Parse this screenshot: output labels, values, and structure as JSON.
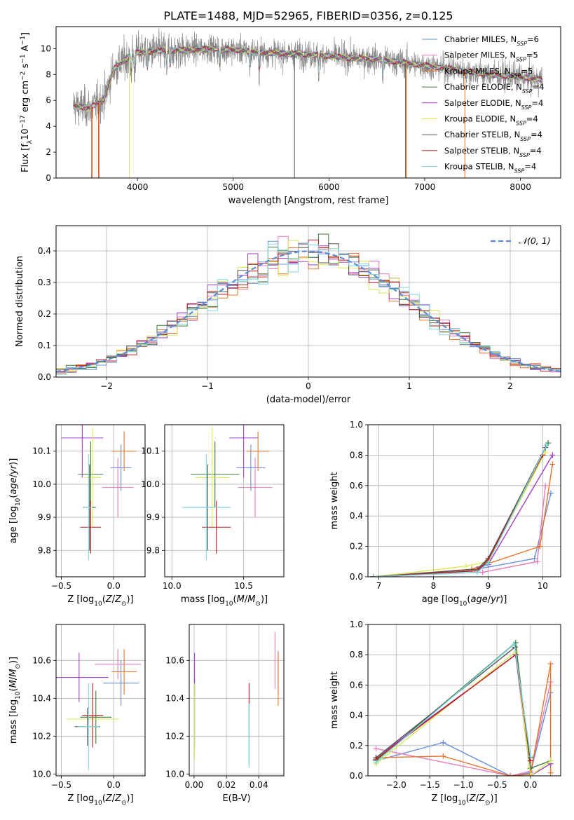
{
  "figure_title": "PLATE=1488, MJD=52965, FIBERID=0356, z=0.125",
  "colors": {
    "Chabrier MILES": "#6a8fd8",
    "Salpeter MILES": "#e87ab8",
    "Kroupa MILES": "#e8732a",
    "Chabrier ELODIE": "#3d7a3d",
    "Salpeter ELODIE": "#a43ec4",
    "Kroupa ELODIE": "#d9ea58",
    "Chabrier STELIB": "#555555",
    "Salpeter STELIB": "#b51f1f",
    "Kroupa STELIB": "#7fd8e0",
    "gaussian": "#5b8bd9",
    "grid": "#b0b0b0"
  },
  "chart_data": [
    {
      "id": "spectrum",
      "type": "line",
      "title": "PLATE=1488, MJD=52965, FIBERID=0356, z=0.125",
      "xlabel": "wavelength [Angstrom, rest frame]",
      "ylabel": "Flux [f_λ10^-17 erg cm^-2 s^-1 A^-1]",
      "xlim": [
        3150,
        8420
      ],
      "ylim": [
        0,
        11.7
      ],
      "xticks": [
        4000,
        5000,
        6000,
        7000,
        8000
      ],
      "yticks": [
        0,
        2,
        4,
        6,
        8,
        10
      ],
      "grid": false,
      "legend_position": "top-right",
      "legend": [
        {
          "model": "Chabrier MILES",
          "text": "Chabrier MILES, N",
          "sub": "SSP",
          "tail": "=6"
        },
        {
          "model": "Salpeter MILES",
          "text": "Salpeter MILES, N",
          "sub": "SSP",
          "tail": "=5"
        },
        {
          "model": "Kroupa MILES",
          "text": "Kroupa MILES, N",
          "sub": "SSP",
          "tail": "=5"
        },
        {
          "model": "Chabrier ELODIE",
          "text": "Chabrier ELODIE, N",
          "sub": "SSP",
          "tail": "=4"
        },
        {
          "model": "Salpeter ELODIE",
          "text": "Salpeter ELODIE, N",
          "sub": "SSP",
          "tail": "=4"
        },
        {
          "model": "Kroupa ELODIE",
          "text": "Kroupa ELODIE, N",
          "sub": "SSP",
          "tail": "=4"
        },
        {
          "model": "Chabrier STELIB",
          "text": "Chabrier STELIB, N",
          "sub": "SSP",
          "tail": "=4"
        },
        {
          "model": "Salpeter STELIB",
          "text": "Salpeter STELIB, N",
          "sub": "SSP",
          "tail": "=4"
        },
        {
          "model": "Kroupa STELIB",
          "text": "Kroupa STELIB, N",
          "sub": "SSP",
          "tail": "=4"
        }
      ],
      "data_series": {
        "name": "data",
        "wavelength_range": [
          3330,
          8230
        ],
        "noise": 0.9
      },
      "continuum": {
        "x": [
          3330,
          3500,
          3650,
          3750,
          3900,
          4000,
          4200,
          4500,
          4800,
          5000,
          5300,
          5600,
          5900,
          6200,
          6500,
          6800,
          7100,
          7400,
          7700,
          8000,
          8230
        ],
        "y": [
          5.6,
          5.4,
          6.1,
          8.4,
          9.3,
          9.7,
          9.8,
          9.9,
          10.0,
          9.9,
          9.7,
          9.6,
          9.5,
          9.3,
          9.2,
          8.9,
          8.6,
          8.3,
          8.0,
          7.8,
          7.6
        ]
      },
      "absorption_lines": [
        3934,
        3968,
        4102,
        4304,
        4341,
        4861,
        5175,
        5270,
        5892,
        6563,
        8498,
        8542,
        8662
      ],
      "vertical_drops": [
        {
          "model": "Salpeter STELIB",
          "x": [
            3525,
            3595
          ]
        },
        {
          "model": "Kroupa MILES",
          "x": [
            3520,
            3600,
            6810,
            7420
          ]
        },
        {
          "model": "Kroupa ELODIE",
          "x": [
            3915,
            6800
          ]
        },
        {
          "model": "Chabrier STELIB",
          "x": [
            5640,
            6800
          ]
        }
      ]
    },
    {
      "id": "residuals",
      "type": "histogram",
      "xlabel": "(data-model)/error",
      "ylabel": "Normed distribution",
      "xlim": [
        -2.5,
        2.5
      ],
      "ylim": [
        0,
        0.48
      ],
      "xticks": [
        -2,
        -1,
        0,
        1,
        2
      ],
      "xtick_labels": [
        "−2",
        "−1",
        "0",
        "1",
        "2"
      ],
      "yticks": [
        0.0,
        0.1,
        0.2,
        0.3,
        0.4
      ],
      "grid": true,
      "legend_position": "top-right",
      "legend": [
        {
          "text": "𝒩(0, 1)",
          "style": "dashed"
        }
      ],
      "bin_width": 0.1,
      "bins_from": -2.5,
      "bin_count": 50,
      "gaussian": {
        "name": "𝒩(0, 1)",
        "mu": 0,
        "sigma": 1
      }
    },
    {
      "id": "age_vs_Z",
      "type": "errorbar",
      "xlabel": "Z [log10(Z/Z⊙)]",
      "ylabel": "age [log10(age/yr)]",
      "xlim": [
        -0.55,
        0.3
      ],
      "ylim": [
        9.72,
        10.18
      ],
      "xticks": [
        -0.5,
        0.0
      ],
      "xtick_labels": [
        "−0.5",
        "0.0"
      ],
      "yticks": [
        9.8,
        9.9,
        10.0,
        10.1
      ],
      "ytick_labels": [
        "9.8",
        "9.9",
        "10.0",
        "10.1"
      ],
      "grid": true,
      "points": [
        {
          "model": "Chabrier MILES",
          "x": 0.07,
          "y": 10.05,
          "xerr": 0.1,
          "yerr": 0.07
        },
        {
          "model": "Salpeter MILES",
          "x": 0.04,
          "y": 9.99,
          "xerr": 0.15,
          "yerr": 0.09
        },
        {
          "model": "Kroupa MILES",
          "x": 0.1,
          "y": 10.1,
          "xerr": 0.12,
          "yerr": 0.06
        },
        {
          "model": "Chabrier ELODIE",
          "x": -0.22,
          "y": 10.03,
          "xerr": 0.12,
          "yerr": 0.1
        },
        {
          "model": "Salpeter ELODIE",
          "x": -0.3,
          "y": 10.14,
          "xerr": 0.2,
          "yerr": 0.12
        },
        {
          "model": "Kroupa ELODIE",
          "x": -0.2,
          "y": 10.02,
          "xerr": 0.08,
          "yerr": 0.15
        },
        {
          "model": "Chabrier STELIB",
          "x": -0.23,
          "y": 9.93,
          "xerr": 0.06,
          "yerr": 0.13
        },
        {
          "model": "Salpeter STELIB",
          "x": -0.22,
          "y": 9.87,
          "xerr": 0.1,
          "yerr": 0.08
        },
        {
          "model": "Kroupa STELIB",
          "x": -0.24,
          "y": 9.93,
          "xerr": 0.04,
          "yerr": 0.16
        }
      ]
    },
    {
      "id": "age_vs_mass",
      "type": "errorbar",
      "xlabel": "mass [log10(M/M⊙)]",
      "ylabel": "",
      "xlim": [
        9.95,
        10.78
      ],
      "ylim": [
        9.72,
        10.18
      ],
      "xticks": [
        10.0,
        10.5
      ],
      "xtick_labels": [
        "10.0",
        "10.5"
      ],
      "yticks": [
        9.8,
        9.9,
        10.0,
        10.1
      ],
      "ytick_labels": [
        "9.8",
        "9.9",
        "10.0",
        "10.1"
      ],
      "grid": true,
      "points": [
        {
          "model": "Chabrier MILES",
          "x": 10.55,
          "y": 10.05,
          "xerr": 0.1,
          "yerr": 0.07
        },
        {
          "model": "Salpeter MILES",
          "x": 10.58,
          "y": 9.99,
          "xerr": 0.12,
          "yerr": 0.09
        },
        {
          "model": "Kroupa MILES",
          "x": 10.6,
          "y": 10.1,
          "xerr": 0.08,
          "yerr": 0.06
        },
        {
          "model": "Chabrier ELODIE",
          "x": 10.3,
          "y": 10.03,
          "xerr": 0.17,
          "yerr": 0.1
        },
        {
          "model": "Salpeter ELODIE",
          "x": 10.5,
          "y": 10.14,
          "xerr": 0.1,
          "yerr": 0.12
        },
        {
          "model": "Kroupa ELODIE",
          "x": 10.28,
          "y": 10.02,
          "xerr": 0.12,
          "yerr": 0.15
        },
        {
          "model": "Chabrier STELIB",
          "x": 10.25,
          "y": 9.93,
          "xerr": 0.15,
          "yerr": 0.13
        },
        {
          "model": "Salpeter STELIB",
          "x": 10.31,
          "y": 9.87,
          "xerr": 0.1,
          "yerr": 0.08
        },
        {
          "model": "Kroupa STELIB",
          "x": 10.24,
          "y": 9.93,
          "xerr": 0.17,
          "yerr": 0.16
        }
      ]
    },
    {
      "id": "weight_vs_age",
      "type": "line",
      "xlabel": "age [log10(age/yr)]",
      "ylabel": "mass weight",
      "xlim": [
        6.8,
        10.33
      ],
      "ylim": [
        0,
        1
      ],
      "xticks": [
        7,
        8,
        9,
        10
      ],
      "yticks": [
        0.0,
        0.2,
        0.4,
        0.6,
        0.8,
        1.0
      ],
      "grid": true,
      "series": [
        {
          "model": "Chabrier MILES",
          "x": [
            6.9,
            8.8,
            9.85,
            10.15
          ],
          "y": [
            0.0,
            0.05,
            0.12,
            0.55
          ]
        },
        {
          "model": "Salpeter MILES",
          "x": [
            6.9,
            8.9,
            9.9,
            10.05
          ],
          "y": [
            0.0,
            0.03,
            0.1,
            0.6
          ]
        },
        {
          "model": "Kroupa MILES",
          "x": [
            6.9,
            8.7,
            9.95,
            10.18
          ],
          "y": [
            0.0,
            0.05,
            0.2,
            0.74
          ]
        },
        {
          "model": "Chabrier ELODIE",
          "x": [
            6.9,
            8.8,
            9.0,
            10.1
          ],
          "y": [
            0.0,
            0.04,
            0.1,
            0.88
          ]
        },
        {
          "model": "Salpeter ELODIE",
          "x": [
            6.9,
            8.8,
            9.0,
            10.18
          ],
          "y": [
            0.0,
            0.05,
            0.08,
            0.8
          ]
        },
        {
          "model": "Kroupa ELODIE",
          "x": [
            6.9,
            8.6,
            9.0,
            10.05
          ],
          "y": [
            0.0,
            0.07,
            0.1,
            0.82
          ]
        },
        {
          "model": "Chabrier STELIB",
          "x": [
            6.9,
            8.8,
            9.0,
            10.05
          ],
          "y": [
            0.0,
            0.05,
            0.12,
            0.85
          ]
        },
        {
          "model": "Salpeter STELIB",
          "x": [
            6.9,
            8.8,
            9.0,
            10.0
          ],
          "y": [
            0.0,
            0.04,
            0.11,
            0.8
          ]
        },
        {
          "model": "Kroupa STELIB",
          "x": [
            6.9,
            8.8,
            9.0,
            10.08
          ],
          "y": [
            0.0,
            0.03,
            0.09,
            0.87
          ]
        }
      ]
    },
    {
      "id": "mass_vs_Z",
      "type": "errorbar",
      "xlabel": "Z [log10(Z/Z⊙)]",
      "ylabel": "mass [log10(M/M⊙)]",
      "xlim": [
        -0.55,
        0.3
      ],
      "ylim": [
        9.99,
        10.79
      ],
      "xticks": [
        -0.5,
        0.0
      ],
      "xtick_labels": [
        "−0.5",
        "0.0"
      ],
      "yticks": [
        10.0,
        10.2,
        10.4,
        10.6
      ],
      "ytick_labels": [
        "10.0",
        "10.2",
        "10.4",
        "10.6"
      ],
      "grid": true,
      "points": [
        {
          "model": "Chabrier MILES",
          "x": 0.07,
          "y": 10.48,
          "xerr": 0.17,
          "yerr": 0.12
        },
        {
          "model": "Salpeter MILES",
          "x": 0.04,
          "y": 10.58,
          "xerr": 0.22,
          "yerr": 0.08
        },
        {
          "model": "Kroupa MILES",
          "x": 0.1,
          "y": 10.54,
          "xerr": 0.12,
          "yerr": 0.12
        },
        {
          "model": "Chabrier ELODIE",
          "x": -0.17,
          "y": 10.3,
          "xerr": 0.15,
          "yerr": 0.14
        },
        {
          "model": "Salpeter ELODIE",
          "x": -0.33,
          "y": 10.51,
          "xerr": 0.28,
          "yerr": 0.13
        },
        {
          "model": "Kroupa ELODIE",
          "x": -0.2,
          "y": 10.29,
          "xerr": 0.25,
          "yerr": 0.12
        },
        {
          "model": "Chabrier STELIB",
          "x": -0.25,
          "y": 10.25,
          "xerr": 0.12,
          "yerr": 0.1
        },
        {
          "model": "Salpeter STELIB",
          "x": -0.2,
          "y": 10.31,
          "xerr": 0.1,
          "yerr": 0.17
        },
        {
          "model": "Kroupa STELIB",
          "x": -0.24,
          "y": 10.25,
          "xerr": 0.1,
          "yerr": 0.23
        }
      ]
    },
    {
      "id": "mass_vs_EBV",
      "type": "errorbar",
      "xlabel": "E(B-V)",
      "ylabel": "",
      "xlim": [
        -0.003,
        0.0555
      ],
      "ylim": [
        9.99,
        10.79
      ],
      "xticks": [
        0.0,
        0.02,
        0.04
      ],
      "xtick_labels": [
        "0.00",
        "0.02",
        "0.04"
      ],
      "yticks": [
        10.0,
        10.2,
        10.4,
        10.6
      ],
      "ytick_labels": [
        "10.0",
        "10.2",
        "10.4",
        "10.6"
      ],
      "grid": true,
      "points": [
        {
          "model": "Chabrier MILES",
          "x": 0.052,
          "y": 10.55,
          "xerr": 0,
          "yerr": 0.1
        },
        {
          "model": "Salpeter MILES",
          "x": 0.05,
          "y": 10.6,
          "xerr": 0,
          "yerr": 0.15
        },
        {
          "model": "Kroupa MILES",
          "x": 0.052,
          "y": 10.5,
          "xerr": 0,
          "yerr": 0.14
        },
        {
          "model": "Chabrier ELODIE",
          "x": 0.0003,
          "y": 10.32,
          "xerr": 0,
          "yerr": 0.18
        },
        {
          "model": "Salpeter ELODIE",
          "x": 0.0003,
          "y": 10.53,
          "xerr": 0,
          "yerr": 0.11
        },
        {
          "model": "Kroupa ELODIE",
          "x": 0.0003,
          "y": 10.28,
          "xerr": 0,
          "yerr": 0.2
        },
        {
          "model": "Chabrier STELIB",
          "x": 0.034,
          "y": 10.2,
          "xerr": 0,
          "yerr": 0.15
        },
        {
          "model": "Salpeter STELIB",
          "x": 0.034,
          "y": 10.36,
          "xerr": 0,
          "yerr": 0.12
        },
        {
          "model": "Kroupa STELIB",
          "x": 0.034,
          "y": 10.2,
          "xerr": 0,
          "yerr": 0.17
        }
      ]
    },
    {
      "id": "weight_vs_Z",
      "type": "line",
      "xlabel": "Z [log10(Z/Z⊙)]",
      "ylabel": "mass weight",
      "xlim": [
        -2.42,
        0.45
      ],
      "ylim": [
        0,
        1
      ],
      "xticks": [
        -2.0,
        -1.5,
        -1.0,
        -0.5,
        0.0
      ],
      "xtick_labels": [
        "−2.0",
        "−1.5",
        "−1.0",
        "−0.5",
        "0.0"
      ],
      "yticks": [
        0.0,
        0.2,
        0.4,
        0.6,
        0.8,
        1.0
      ],
      "grid": true,
      "series": [
        {
          "model": "Chabrier MILES",
          "x": [
            -2.3,
            -1.3,
            -0.3,
            0.0,
            0.3
          ],
          "y": [
            0.1,
            0.22,
            0.0,
            0.02,
            0.55
          ]
        },
        {
          "model": "Salpeter MILES",
          "x": [
            -2.3,
            -0.3,
            0.0,
            0.3
          ],
          "y": [
            0.18,
            0.0,
            0.03,
            0.62
          ]
        },
        {
          "model": "Kroupa MILES",
          "x": [
            -2.3,
            -1.3,
            -0.3,
            0.0,
            0.3,
            0.3
          ],
          "y": [
            0.12,
            0.13,
            0.0,
            0.01,
            0.74,
            0.02
          ]
        },
        {
          "model": "Chabrier ELODIE",
          "x": [
            -2.3,
            -0.22,
            0.0,
            0.3
          ],
          "y": [
            0.1,
            0.88,
            0.05,
            0.1
          ]
        },
        {
          "model": "Salpeter ELODIE",
          "x": [
            -2.3,
            -0.22,
            0.0,
            0.3
          ],
          "y": [
            0.12,
            0.8,
            0.0,
            0.08
          ]
        },
        {
          "model": "Kroupa ELODIE",
          "x": [
            -2.3,
            -0.22,
            0.0,
            0.3
          ],
          "y": [
            0.08,
            0.82,
            0.0,
            0.1
          ]
        },
        {
          "model": "Chabrier STELIB",
          "x": [
            -2.3,
            -0.23,
            0.0
          ],
          "y": [
            0.12,
            0.85,
            0.12
          ]
        },
        {
          "model": "Salpeter STELIB",
          "x": [
            -2.3,
            -0.22,
            0.0
          ],
          "y": [
            0.11,
            0.8,
            0.1
          ]
        },
        {
          "model": "Kroupa STELIB",
          "x": [
            -2.3,
            -0.24,
            0.0
          ],
          "y": [
            0.09,
            0.87,
            0.13
          ]
        }
      ]
    }
  ]
}
